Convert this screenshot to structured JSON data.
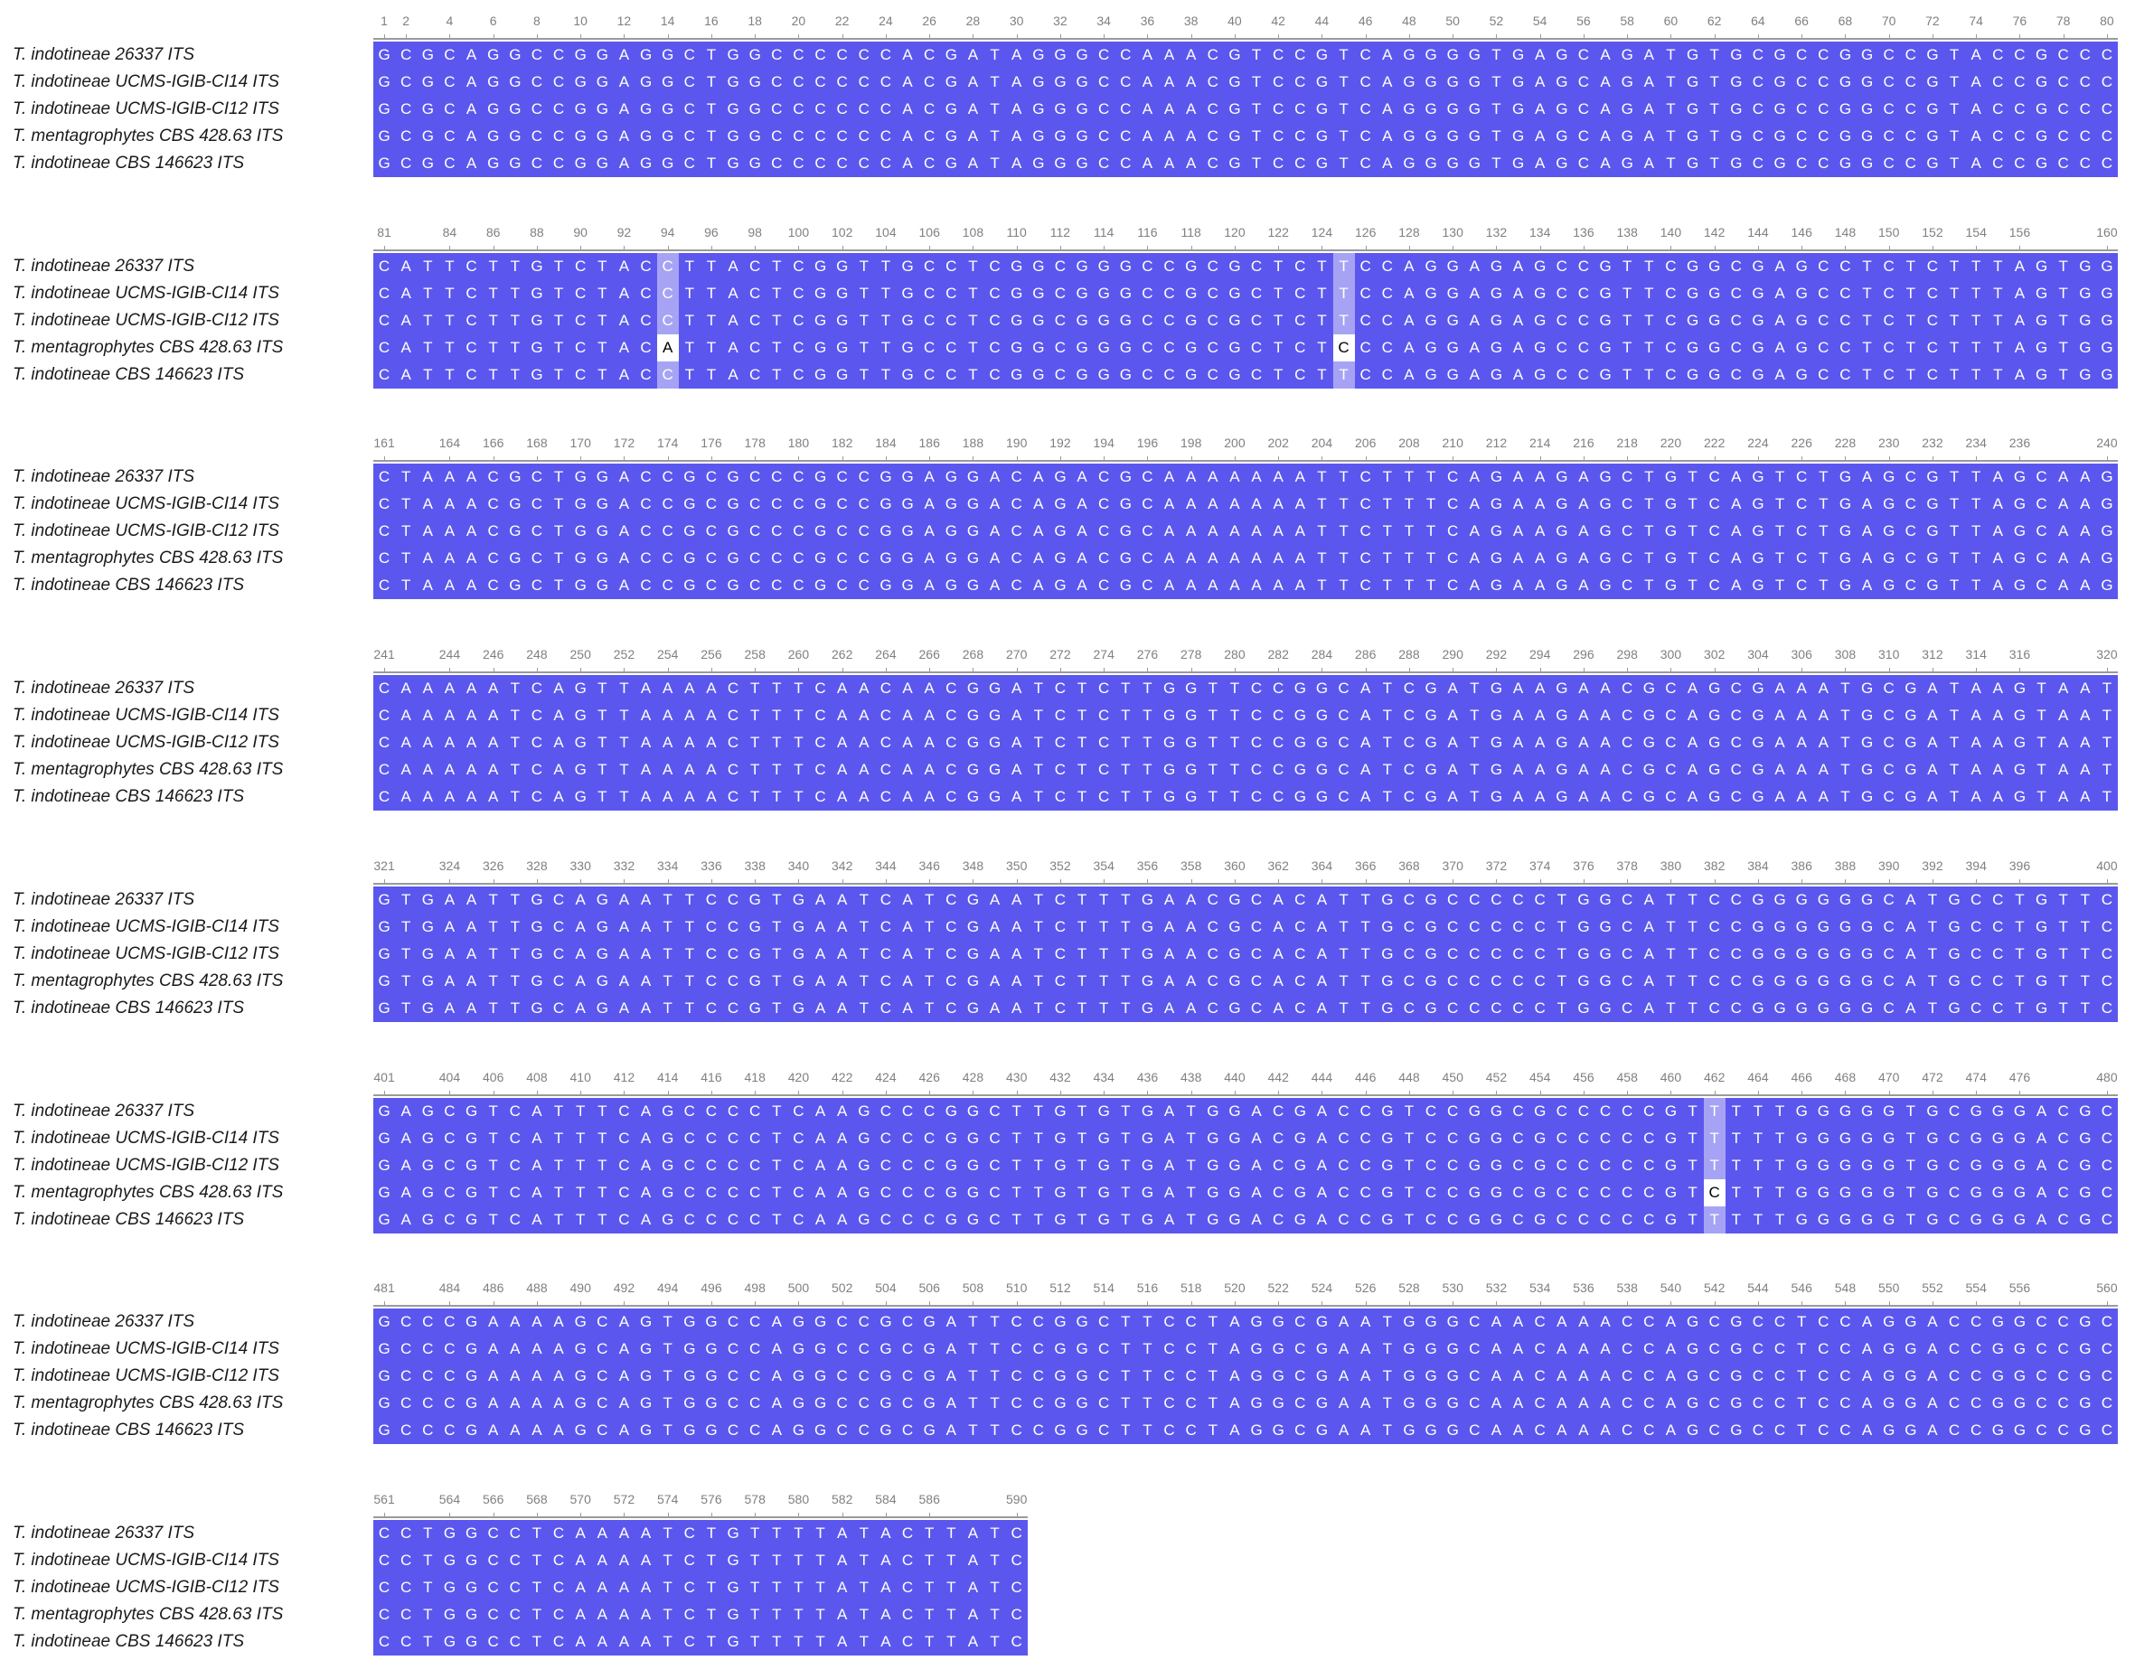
{
  "species": [
    {
      "genus": "T.",
      "epithet": "indotineae",
      "strain": "26337 ITS"
    },
    {
      "genus": "T.",
      "epithet": "indotineae",
      "strain": "UCMS-IGIB-CI14 ITS"
    },
    {
      "genus": "T.",
      "epithet": "indotineae",
      "strain": "UCMS-IGIB-CI12 ITS"
    },
    {
      "genus": "T.",
      "epithet": "mentagrophytes",
      "strain": "CBS 428.63 ITS"
    },
    {
      "genus": "T.",
      "epithet": "indotineae",
      "strain": "CBS 146623 ITS"
    }
  ],
  "reference_sequence": "GCGCAGGCCGGAGGCTGGCCCCCCACGATAGGGCCAAACGTCCGTCAGGGGTGAGCAGATGTGCGCCGGCCGTACCGCCCCATTCTTGTCTACCTTACTCGGTTGCCTCGGCGGGCCGCGCTCTTCCAGGAGAGCCGTTCGGCGAGCCTCTCTTTAGTGGCTAAACGCTGGACCGCGCCCGCCGGAGGACAGACGCAAAAAAATTCTTTCAGAAGAGCTGTCAGTCTGAGCGTTAGCAAGCAAAAATCAGTTAAAACTTTCAACAACGGATCTCTTGGTTCCGGCATCGATGAAGAACGCAGCGAAATGCGATAAGTAATGTGAATTGCAGAATTCCGTGAATCATCGAATCTTTGAACGCACATTGCGCCCCCTGGCATTCCGGGGGGCATGCCTGTTCGAGCGTCATTTCAGCCCCTCAAGCCCGGCTTGTGTGATGGACGACCGTCCGGCGCCCCCGTTTTTGGGGGTGCGGGACGCGCCCGAAAAGCAGTGGCCAGGCCGCGATTCCGGCTTCCTAGGCGAATGGGCAACAAACCAGCGCCTCCAGGACCGGCCGCCCTGGCCTCAAAATCTGTTTTATACTTATC",
  "variants": [
    {
      "row": 3,
      "position": 94,
      "base": "A"
    },
    {
      "row": 3,
      "position": 125,
      "base": "C"
    },
    {
      "row": 3,
      "position": 462,
      "base": "C"
    }
  ],
  "block_ticks": [
    [
      1,
      2,
      4,
      6,
      8,
      10,
      12,
      14,
      16,
      18,
      20,
      22,
      24,
      26,
      28,
      30,
      32,
      34,
      36,
      38,
      40,
      42,
      44,
      46,
      48,
      50,
      52,
      54,
      56,
      58,
      60,
      62,
      64,
      66,
      68,
      70,
      72,
      74,
      76,
      78,
      80
    ],
    [
      81,
      84,
      86,
      88,
      90,
      92,
      94,
      96,
      98,
      100,
      102,
      104,
      106,
      108,
      110,
      112,
      114,
      116,
      118,
      120,
      122,
      124,
      126,
      128,
      130,
      132,
      134,
      136,
      138,
      140,
      142,
      144,
      146,
      148,
      150,
      152,
      154,
      156,
      160
    ],
    [
      161,
      164,
      166,
      168,
      170,
      172,
      174,
      176,
      178,
      180,
      182,
      184,
      186,
      188,
      190,
      192,
      194,
      196,
      198,
      200,
      202,
      204,
      206,
      208,
      210,
      212,
      214,
      216,
      218,
      220,
      222,
      224,
      226,
      228,
      230,
      232,
      234,
      236,
      240
    ],
    [
      241,
      244,
      246,
      248,
      250,
      252,
      254,
      256,
      258,
      260,
      262,
      264,
      266,
      268,
      270,
      272,
      274,
      276,
      278,
      280,
      282,
      284,
      286,
      288,
      290,
      292,
      294,
      296,
      298,
      300,
      302,
      304,
      306,
      308,
      310,
      312,
      314,
      316,
      320
    ],
    [
      321,
      324,
      326,
      328,
      330,
      332,
      334,
      336,
      338,
      340,
      342,
      344,
      346,
      348,
      350,
      352,
      354,
      356,
      358,
      360,
      362,
      364,
      366,
      368,
      370,
      372,
      374,
      376,
      378,
      380,
      382,
      384,
      386,
      388,
      390,
      392,
      394,
      396,
      400
    ],
    [
      401,
      404,
      406,
      408,
      410,
      412,
      414,
      416,
      418,
      420,
      422,
      424,
      426,
      428,
      430,
      432,
      434,
      436,
      438,
      440,
      442,
      444,
      446,
      448,
      450,
      452,
      454,
      456,
      458,
      460,
      462,
      464,
      466,
      468,
      470,
      472,
      474,
      476,
      480
    ],
    [
      481,
      484,
      486,
      488,
      490,
      492,
      494,
      496,
      498,
      500,
      502,
      504,
      506,
      508,
      510,
      512,
      514,
      516,
      518,
      520,
      522,
      524,
      526,
      528,
      530,
      532,
      534,
      536,
      538,
      540,
      542,
      544,
      546,
      548,
      550,
      552,
      554,
      556,
      560
    ],
    [
      561,
      564,
      566,
      568,
      570,
      572,
      574,
      576,
      578,
      580,
      582,
      584,
      586,
      590
    ]
  ],
  "colors": {
    "identical": "#5b57ee",
    "conserved_column": "#a6a3f5",
    "variant_cell": "#ffffff",
    "label_text": "#1a1a1a",
    "ruler_text": "#808080"
  }
}
